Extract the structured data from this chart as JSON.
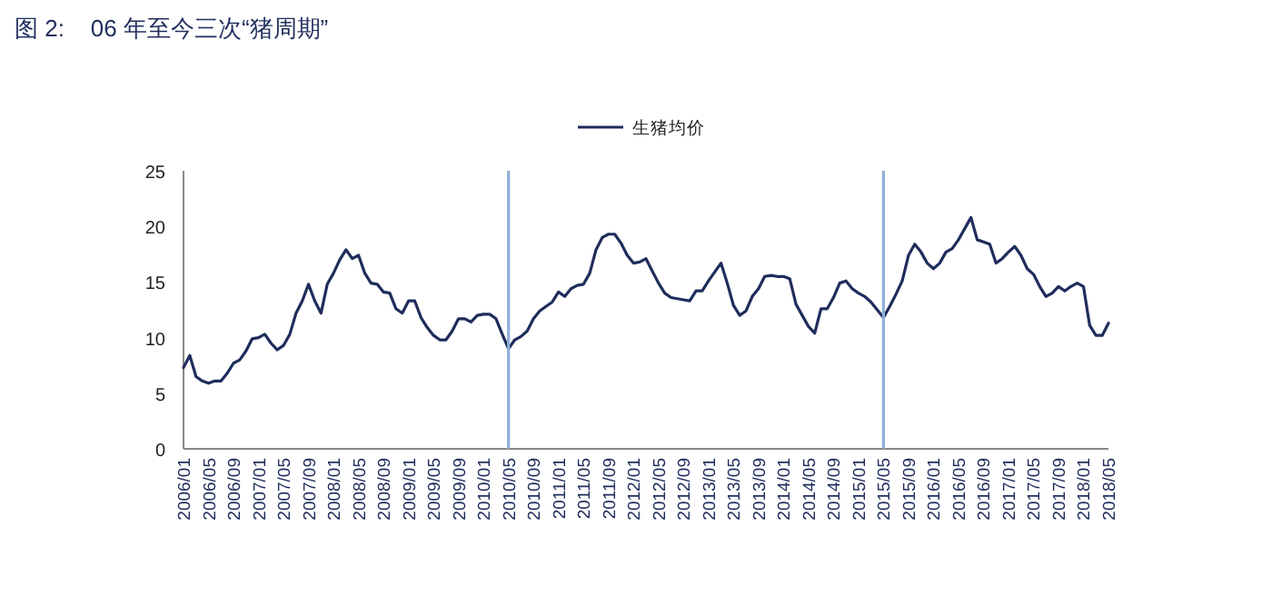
{
  "chart_data": {
    "type": "line",
    "title": "图 2:    06 年至今三次“猪周期”",
    "categories": [
      "2006/01",
      null,
      null,
      null,
      "2006/05",
      null,
      null,
      null,
      "2006/09",
      null,
      null,
      null,
      "2007/01",
      null,
      null,
      null,
      "2007/05",
      null,
      null,
      null,
      "2007/09",
      null,
      null,
      null,
      "2008/01",
      null,
      null,
      null,
      "2008/05",
      null,
      null,
      null,
      "2008/09",
      null,
      null,
      null,
      "2009/01",
      null,
      null,
      null,
      "2009/05",
      null,
      null,
      null,
      "2009/09",
      null,
      null,
      null,
      "2010/01",
      null,
      null,
      null,
      "2010/05",
      null,
      null,
      null,
      "2010/09",
      null,
      null,
      null,
      "2011/01",
      null,
      null,
      null,
      "2011/05",
      null,
      null,
      null,
      "2011/09",
      null,
      null,
      null,
      "2012/01",
      null,
      null,
      null,
      "2012/05",
      null,
      null,
      null,
      "2012/09",
      null,
      null,
      null,
      "2013/01",
      null,
      null,
      null,
      "2013/05",
      null,
      null,
      null,
      "2013/09",
      null,
      null,
      null,
      "2014/01",
      null,
      null,
      null,
      "2014/05",
      null,
      null,
      null,
      "2014/09",
      null,
      null,
      null,
      "2015/01",
      null,
      null,
      null,
      "2015/05",
      null,
      null,
      null,
      "2015/09",
      null,
      null,
      null,
      "2016/01",
      null,
      null,
      null,
      "2016/05",
      null,
      null,
      null,
      "2016/09",
      null,
      null,
      null,
      "2017/01",
      null,
      null,
      null,
      "2017/05",
      null,
      null,
      null,
      "2017/09",
      null,
      null,
      null,
      "2018/01",
      null,
      null,
      null,
      "2018/05"
    ],
    "series": [
      {
        "name": "生猪均价",
        "color": "#1f2d5c",
        "values": [
          7.3,
          8.4,
          6.5,
          6.1,
          5.9,
          6.1,
          6.1,
          6.8,
          7.7,
          8.0,
          8.8,
          9.9,
          10.0,
          10.3,
          9.5,
          8.9,
          9.3,
          10.3,
          12.2,
          13.3,
          14.8,
          13.3,
          12.2,
          14.8,
          15.8,
          17.0,
          17.9,
          17.1,
          17.4,
          15.8,
          14.9,
          14.8,
          14.1,
          14.0,
          12.6,
          12.2,
          13.3,
          13.3,
          11.8,
          10.9,
          10.2,
          9.8,
          9.8,
          10.6,
          11.7,
          11.7,
          11.4,
          12.0,
          12.1,
          12.1,
          11.7,
          10.3,
          9.0,
          9.8,
          10.1,
          10.6,
          11.7,
          12.4,
          12.8,
          13.2,
          14.1,
          13.7,
          14.4,
          14.7,
          14.8,
          15.8,
          17.9,
          19.0,
          19.3,
          19.3,
          18.5,
          17.4,
          16.7,
          16.8,
          17.1,
          16.0,
          14.9,
          14.0,
          13.6,
          13.5,
          13.4,
          13.3,
          14.2,
          14.2,
          15.1,
          15.9,
          16.7,
          14.9,
          12.9,
          12.0,
          12.4,
          13.7,
          14.4,
          15.5,
          15.6,
          15.5,
          15.5,
          15.3,
          13.0,
          12.0,
          11.0,
          10.4,
          12.6,
          12.6,
          13.6,
          14.9,
          15.1,
          14.4,
          14.0,
          13.7,
          13.2,
          12.5,
          11.8,
          12.8,
          13.9,
          15.1,
          17.4,
          18.4,
          17.7,
          16.7,
          16.2,
          16.7,
          17.7,
          18.0,
          18.8,
          19.8,
          20.8,
          18.8,
          18.6,
          18.4,
          16.7,
          17.1,
          17.7,
          18.2,
          17.4,
          16.2,
          15.7,
          14.6,
          13.7,
          14.0,
          14.6,
          14.2,
          14.6,
          14.9,
          14.6,
          11.1,
          10.2,
          10.2,
          11.3
        ]
      }
    ],
    "ylim": [
      0,
      25
    ],
    "yticks": [
      0,
      5,
      10,
      15,
      20,
      25
    ],
    "ref_lines": [
      {
        "axis": "x",
        "value": "2010/05",
        "color": "#8fb0d8"
      },
      {
        "axis": "x",
        "value": "2015/05",
        "color": "#8fb0d8"
      }
    ],
    "legend": "top",
    "grid": false,
    "marker": "none",
    "line_style": "solid"
  }
}
